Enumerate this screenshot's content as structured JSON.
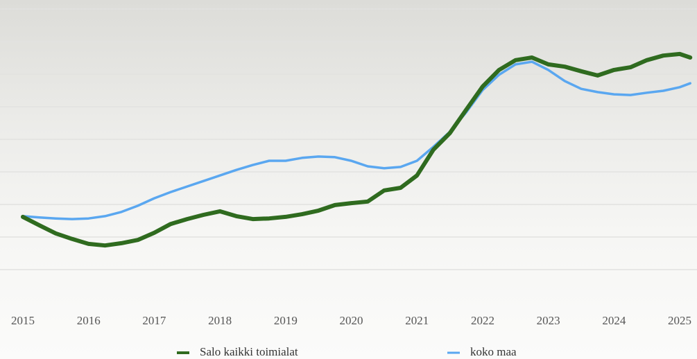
{
  "chart_data": {
    "type": "line",
    "x": [
      2015.0,
      2015.25,
      2015.5,
      2015.75,
      2016.0,
      2016.25,
      2016.5,
      2016.75,
      2017.0,
      2017.25,
      2017.5,
      2017.75,
      2018.0,
      2018.25,
      2018.5,
      2018.75,
      2019.0,
      2019.25,
      2019.5,
      2019.75,
      2020.0,
      2020.25,
      2020.5,
      2020.75,
      2021.0,
      2021.25,
      2021.5,
      2021.75,
      2022.0,
      2022.25,
      2022.5,
      2022.75,
      2023.0,
      2023.25,
      2023.5,
      2023.75,
      2024.0,
      2024.25,
      2024.5,
      2024.75,
      2025.0,
      2025.16
    ],
    "series": [
      {
        "name": "Salo kaikki toimialat",
        "color": "#2f6b1f",
        "values": [
          26.2,
          23.6,
          21.1,
          19.4,
          17.9,
          17.4,
          18.1,
          19.1,
          21.3,
          24.0,
          25.5,
          26.8,
          27.9,
          26.4,
          25.5,
          25.7,
          26.2,
          27.0,
          28.1,
          29.8,
          30.4,
          30.9,
          34.3,
          35.1,
          38.9,
          46.8,
          51.9,
          59.1,
          66.2,
          71.3,
          74.3,
          75.1,
          73.0,
          72.3,
          70.9,
          69.6,
          71.3,
          72.1,
          74.3,
          75.7,
          76.2,
          75.1
        ]
      },
      {
        "name": "koko maa",
        "color": "#5aa7f0",
        "values": [
          26.4,
          26.0,
          25.7,
          25.5,
          25.7,
          26.4,
          27.7,
          29.6,
          31.9,
          33.8,
          35.5,
          37.2,
          38.9,
          40.6,
          42.1,
          43.4,
          43.4,
          44.3,
          44.7,
          44.5,
          43.4,
          41.7,
          41.1,
          41.5,
          43.4,
          47.7,
          52.3,
          58.3,
          65.1,
          69.8,
          73.0,
          73.8,
          71.3,
          67.9,
          65.5,
          64.5,
          63.8,
          63.6,
          64.3,
          64.9,
          66.0,
          67.2
        ]
      }
    ],
    "xlim": [
      2015,
      2025.2
    ],
    "xticks": [
      2015,
      2016,
      2017,
      2018,
      2019,
      2020,
      2021,
      2022,
      2023,
      2024,
      2025
    ],
    "ylim": [
      0,
      90
    ],
    "yticks": [
      10,
      20,
      30,
      40,
      50,
      60,
      70,
      80,
      90
    ],
    "grid": true
  }
}
